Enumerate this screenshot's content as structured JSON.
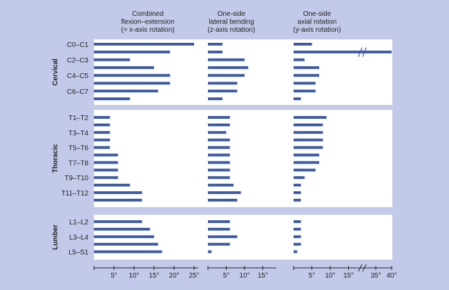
{
  "chart_data": {
    "type": "bar",
    "orientation": "horizontal",
    "colors": {
      "background": "#c3c9e8",
      "panel": "#ffffff",
      "bar": "#3c5aa6",
      "text": "#222222"
    },
    "columns": [
      {
        "key": "flexext",
        "title": [
          "Combined",
          "flexion–extension",
          "(= x-axis rotation)"
        ],
        "xlim": [
          0,
          25
        ],
        "ticks": [
          "5°",
          "10°",
          "15°",
          "20°",
          "25°"
        ]
      },
      {
        "key": "lateral",
        "title": [
          "One-side",
          "lateral bending",
          "(z-axis rotation)"
        ],
        "xlim": [
          0,
          15
        ],
        "ticks": [
          "5°",
          "10°",
          "15°"
        ]
      },
      {
        "key": "axial",
        "title": [
          "One-side",
          "axial rotation",
          "(y-axis rotation)"
        ],
        "xlim": [
          0,
          15
        ],
        "axis_break": true,
        "ticks": [
          "5°",
          "10°",
          "15°",
          "35°",
          "40°"
        ]
      }
    ],
    "regions": [
      {
        "name": "Cervical",
        "levels": [
          "C0–C1",
          "",
          "C2–C3",
          "",
          "C4–C5",
          "",
          "C6–C7",
          ""
        ],
        "flexext": [
          25,
          19,
          9,
          15,
          19,
          19,
          16,
          9
        ],
        "lateral": [
          4,
          4,
          10,
          11,
          10,
          8,
          8,
          4
        ],
        "axial": [
          5,
          40,
          3,
          7,
          7,
          6,
          6,
          2
        ]
      },
      {
        "name": "Thoracic",
        "levels": [
          "T1–T2",
          "",
          "T3–T4",
          "",
          "T5–T6",
          "",
          "T7–T8",
          "",
          "T9–T10",
          "",
          "T11–T12",
          ""
        ],
        "flexext": [
          4,
          4,
          4,
          4,
          4,
          6,
          6,
          6,
          6,
          9,
          12,
          12
        ],
        "lateral": [
          6,
          6,
          5,
          6,
          6,
          6,
          6,
          6,
          6,
          7,
          9,
          8
        ],
        "axial": [
          9,
          8,
          8,
          8,
          8,
          7,
          7,
          6,
          3,
          2,
          2,
          2
        ]
      },
      {
        "name": "Lumber",
        "levels": [
          "L1–L2",
          "",
          "L3–L4",
          "",
          "L5–S1"
        ],
        "flexext": [
          12,
          14,
          15,
          16,
          17
        ],
        "lateral": [
          6,
          6,
          8,
          6,
          1
        ],
        "axial": [
          2,
          2,
          2,
          2,
          1
        ]
      }
    ]
  }
}
